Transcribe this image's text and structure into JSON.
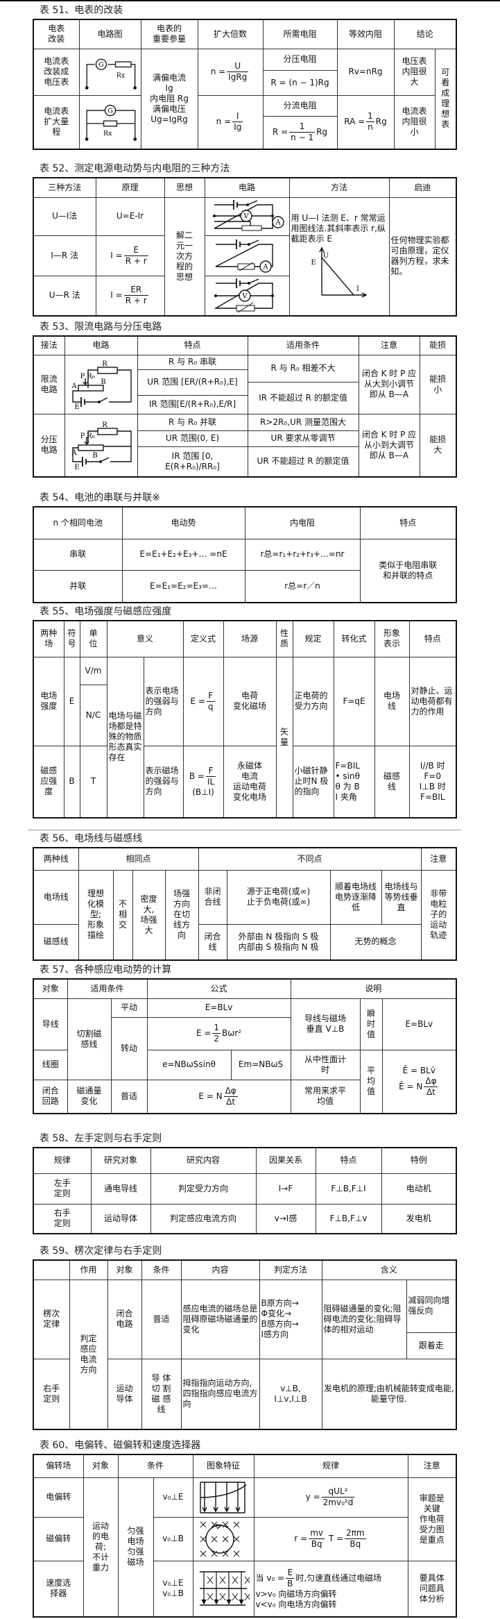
{
  "tables": [
    {
      "id": "51",
      "title": "表 51、电表的改装",
      "rows": [
        [
          {
            "t": "电表\n改装"
          },
          {
            "t": "电路图"
          },
          {
            "t": "电表的\n重要参量"
          },
          {
            "t": "扩大倍数"
          },
          {
            "t": "所需电阻"
          },
          {
            "t": "等效内阻"
          },
          {
            "t": "结论",
            "cs": 2
          }
        ],
        [
          {
            "t": "电流表\n改装成\n电压表",
            "rs": 2
          },
          {
            "svg": "voltmeter-conversion-circuit",
            "labels": [
              "G",
              "Rx"
            ],
            "rs": 2
          },
          {
            "t": "满偏电流\nIg\n内电阻 Rg\n满偏电压\nUg=IgRg",
            "rs": 4
          },
          {
            "m": [
              "n =",
              {
                "n": "U",
                "d": "IgRg"
              }
            ],
            "rs": 2
          },
          {
            "t": "分压电阻"
          },
          {
            "t": "Rv=nRg",
            "rs": 2
          },
          {
            "t": "电压表\n内阻很\n大",
            "rs": 2
          },
          {
            "t": "可\n看\n成\n理\n想\n表",
            "rs": 4
          }
        ],
        [
          {
            "m": [
              "R = (n − 1)Rg"
            ]
          }
        ],
        [
          {
            "t": "电流表\n扩大量\n程",
            "rs": 2
          },
          {
            "svg": "ammeter-conversion-circuit",
            "labels": [
              "G",
              "Rx"
            ],
            "rs": 2
          },
          {
            "m": [
              "n =",
              {
                "n": "I",
                "d": "Ig"
              }
            ],
            "rs": 2
          },
          {
            "t": "分流电阻"
          },
          {
            "m": [
              "RA =",
              {
                "n": "1",
                "d": "n"
              },
              "Rg"
            ],
            "rs": 2
          },
          {
            "t": "电流表\n内阻很\n小",
            "rs": 2
          }
        ],
        [
          {
            "m": [
              "R =",
              {
                "n": "1",
                "d": "n − 1"
              },
              "Rg"
            ]
          }
        ]
      ]
    },
    {
      "id": "52",
      "title": "表 52、测定电源电动势与内电阻的三种方法",
      "rows": [
        [
          {
            "t": "三种方法"
          },
          {
            "t": "原理"
          },
          {
            "t": "思想"
          },
          {
            "t": "电路"
          },
          {
            "t": "方法"
          },
          {
            "t": "启迪"
          }
        ],
        [
          {
            "t": "U—I法"
          },
          {
            "t": "U=E-Ir"
          },
          {
            "t": "解二\n元一\n次方\n程的\n思想",
            "rs": 3
          },
          {
            "svg": "ui-method-circuit",
            "labels": [
              "V",
              "A"
            ]
          },
          {
            "t": "用 U—I 法测 E、r 常常运用图线法.其斜率表示 r,纵截距表示 E",
            "svg": "ui-graph",
            "labels": [
              "E",
              "U",
              "I"
            ],
            "rs": 3
          },
          {
            "t": "任何物理实验都可由原理，定仪器列方程，求未知。",
            "rs": 3
          }
        ],
        [
          {
            "t": "I—R 法"
          },
          {
            "m": [
              "I =",
              {
                "n": "E",
                "d": "R + r"
              }
            ]
          },
          {
            "svg": "ir-method-circuit",
            "labels": [
              "A"
            ]
          }
        ],
        [
          {
            "t": "U—R 法"
          },
          {
            "m": [
              "I =",
              {
                "n": "ER",
                "d": "R + r"
              }
            ]
          },
          {
            "svg": "ur-method-circuit",
            "labels": [
              "V"
            ]
          }
        ]
      ]
    },
    {
      "id": "53",
      "title": "表 53、限流电路与分压电路",
      "rows": [
        [
          {
            "t": "接法"
          },
          {
            "t": "电路"
          },
          {
            "t": "特点"
          },
          {
            "t": "适用条件"
          },
          {
            "t": "注意"
          },
          {
            "t": "能损"
          }
        ],
        [
          {
            "t": "限流\n电路",
            "rs": 4
          },
          {
            "svg": "current-limiting-circuit",
            "labels": [
              "R",
              "P",
              "R₀",
              "A",
              "B",
              "E"
            ],
            "rs": 4
          },
          {
            "t": "R 与 R₀ 串联"
          },
          {
            "t": "R 与 R₀ 相差不大",
            "rs": 2
          },
          {
            "t": "闭合 K 时 P 应从大到小调节即从 B—A",
            "rs": 4
          },
          {
            "t": "能损\n小",
            "rs": 4
          }
        ],
        [
          {
            "t": "UR 范围 [ER/(R+R₀),E]",
            "rs": 2
          }
        ],
        [
          {
            "t": "IR 不能超过 R 的额定值",
            "rs": 2
          }
        ],
        [
          {
            "t": "IR 范围[E/(R+R₀),E/R]"
          }
        ],
        [
          {
            "t": "分压\n电路",
            "rs": 3
          },
          {
            "svg": "voltage-divider-circuit",
            "labels": [
              "R",
              "P",
              "R₀",
              "A",
              "B",
              "E"
            ],
            "rs": 3
          },
          {
            "t": "R 与 R₀ 并联"
          },
          {
            "t": "R>2R₀,UR 测量范围大"
          },
          {
            "t": "闭合 K 时 P 应从小到大调节即从 B—A",
            "rs": 3
          },
          {
            "t": "能损\n大",
            "rs": 3
          }
        ],
        [
          {
            "t": "UR 范围(0, E)"
          },
          {
            "t": "UR 要求从零调节"
          }
        ],
        [
          {
            "t": "IR 范围 [0,\nE(R+R₀)/RR₀]"
          },
          {
            "t": "UR 不能超过 R 的额定值"
          }
        ]
      ]
    },
    {
      "id": "54",
      "title": "表 54、电池的串联与并联※",
      "rows": [
        [
          {
            "t": "n 个相同电池"
          },
          {
            "t": "电动势"
          },
          {
            "t": "内电阻"
          },
          {
            "t": "特点"
          }
        ],
        [
          {
            "t": "串联"
          },
          {
            "t": "E=E₁+E₂+E₃+… =nE"
          },
          {
            "t": "r总=r₁+r₂+r₃+…=nr"
          },
          {
            "t": "类似于电阻串联\n和并联的特点",
            "rs": 2
          }
        ],
        [
          {
            "t": "并联"
          },
          {
            "t": "E=E₁=E₂=E₃=…"
          },
          {
            "t": "r总=r／n"
          }
        ]
      ]
    },
    {
      "id": "55",
      "title": "表 55、电场强度与磁感应强度",
      "rows": [
        [
          {
            "t": "两种\n场"
          },
          {
            "t": "符\n号"
          },
          {
            "t": "单\n位"
          },
          {
            "t": "意义",
            "cs": 2
          },
          {
            "t": "定义式"
          },
          {
            "t": "场源"
          },
          {
            "t": "性\n质"
          },
          {
            "t": "规定"
          },
          {
            "t": "转化式"
          },
          {
            "t": "形象\n表示"
          },
          {
            "t": "特点"
          }
        ],
        [
          {
            "t": "电场\n强度",
            "rs": 2
          },
          {
            "t": "E",
            "rs": 2
          },
          {
            "t": "V/m"
          },
          {
            "t": "电场与磁场都是特殊的物质形态真实存在",
            "rs": 3
          },
          {
            "t": "表示电场的强弱与方向",
            "rs": 2
          },
          {
            "m": [
              "E =",
              {
                "n": "F",
                "d": "q"
              }
            ],
            "rs": 2
          },
          {
            "t": "电荷\n变化磁场",
            "rs": 2
          },
          {
            "t": "矢\n量",
            "rs": 3
          },
          {
            "t": "正电荷的受力方向",
            "rs": 2
          },
          {
            "t": "F=qE",
            "rs": 2
          },
          {
            "t": "电场\n线",
            "rs": 2
          },
          {
            "t": "对静止、运动电荷都有力的作用",
            "rs": 2
          }
        ],
        [
          {
            "t": "N/C"
          }
        ],
        [
          {
            "t": "磁感\n应强\n度"
          },
          {
            "t": "B"
          },
          {
            "t": "T"
          },
          {
            "t": "表示磁场的强弱与方向"
          },
          {
            "m": [
              "B =",
              {
                "n": "F",
                "d": "IL"
              },
              "\n(B⊥I)"
            ]
          },
          {
            "t": "永磁体\n电流\n运动电荷\n变化电场"
          },
          {
            "t": "小磁针静止时N 极的指向"
          },
          {
            "t": "F=BIL\n• sinθ\nθ 为 B\nI 夹角"
          },
          {
            "t": "磁感\n线"
          },
          {
            "t": "I//B 时\nF=0\nI⊥B 时\nF=BIL"
          }
        ]
      ]
    },
    {
      "id": "56",
      "title": "表 56、电场线与磁感线",
      "rows": [
        [
          {
            "t": "两种线"
          },
          {
            "t": "相同点",
            "cs": 4
          },
          {
            "t": "不同点",
            "cs": 4
          },
          {
            "t": "注意"
          }
        ],
        [
          {
            "t": "电场线"
          },
          {
            "t": "理想\n化模\n型;\n形象\n描绘",
            "rs": 2
          },
          {
            "t": "不\n相\n交",
            "rs": 2
          },
          {
            "t": "密度\n大,\n场强\n大",
            "rs": 2
          },
          {
            "t": "场强\n方向\n在切\n线方\n向",
            "rs": 2
          },
          {
            "t": "非闭\n合线"
          },
          {
            "t": "源于正电荷(或∞)\n止于负电荷(或∞)"
          },
          {
            "t": "顺着电场线电势逐渐降低"
          },
          {
            "t": "电场线与等势线垂直"
          },
          {
            "t": "非带\n电粒\n子的\n运动\n轨迹",
            "rs": 2
          }
        ],
        [
          {
            "t": "磁感线"
          },
          {
            "t": "闭合\n线"
          },
          {
            "t": "外部由 N 极指向 S 极\n内部由 S 极指向 N 极"
          },
          {
            "t": "无势的概念",
            "cs": 2
          }
        ]
      ]
    },
    {
      "id": "57",
      "title": "表 57、各种感应电动势的计算",
      "rows": [
        [
          {
            "t": "对象"
          },
          {
            "t": "适用条件",
            "cs": 2
          },
          {
            "t": "公式",
            "cs": 2
          },
          {
            "t": "说明",
            "cs": 3
          }
        ],
        [
          {
            "t": "导线",
            "rs": 2
          },
          {
            "t": "切割磁\n感线",
            "rs": 3
          },
          {
            "t": "平动"
          },
          {
            "t": "E=BLv",
            "cs": 2
          },
          {
            "t": "导线与磁场\n垂直 V⊥B",
            "rs": 2
          },
          {
            "t": "瞬\n时\n值",
            "rs": 2
          },
          {
            "t": "E=BLv",
            "rs": 2
          }
        ],
        [
          {
            "t": "转动",
            "rs": 2
          },
          {
            "m": [
              "E =",
              {
                "n": "1",
                "d": "2"
              },
              "Bωr²"
            ],
            "cs": 2
          }
        ],
        [
          {
            "t": "线圈"
          },
          {
            "t": "e=NBωSsinθ"
          },
          {
            "t": "Em=NBωS"
          },
          {
            "t": "从中性面计\n时"
          },
          {
            "t": "平\n均\n值",
            "rs": 2
          },
          {
            "m": [
              "Ē = BLv̄\n",
              "Ē = N",
              {
                "n": "Δφ",
                "d": "Δt"
              }
            ],
            "rs": 2
          }
        ],
        [
          {
            "t": "闭合\n回路"
          },
          {
            "t": "磁通量\n变化"
          },
          {
            "t": "普适"
          },
          {
            "m": [
              "E = N",
              {
                "n": "Δφ",
                "d": "Δt"
              }
            ],
            "cs": 2
          },
          {
            "t": "常用来求平\n均值"
          }
        ]
      ]
    },
    {
      "id": "58",
      "title": "表 58、左手定则与右手定则",
      "rows": [
        [
          {
            "t": "规律"
          },
          {
            "t": "研究对象"
          },
          {
            "t": "研究内容"
          },
          {
            "t": "因果关系"
          },
          {
            "t": "特点"
          },
          {
            "t": "特例"
          }
        ],
        [
          {
            "t": "左手\n定则"
          },
          {
            "t": "通电导线"
          },
          {
            "t": "判定受力方向"
          },
          {
            "t": "I→F"
          },
          {
            "t": "F⊥B,F⊥I"
          },
          {
            "t": "电动机"
          }
        ],
        [
          {
            "t": "右手\n定则"
          },
          {
            "t": "运动导体"
          },
          {
            "t": "判定感应电流方向"
          },
          {
            "t": "v→I感"
          },
          {
            "t": "F⊥B,F⊥v"
          },
          {
            "t": "发电机"
          }
        ]
      ]
    },
    {
      "id": "59",
      "title": "表 59、楞次定律与右手定则",
      "rows": [
        [
          {
            "t": ""
          },
          {
            "t": "作用"
          },
          {
            "t": "对象"
          },
          {
            "t": "条件"
          },
          {
            "t": "内容"
          },
          {
            "t": "判定方法"
          },
          {
            "t": "含义",
            "cs": 2
          }
        ],
        [
          {
            "t": "楞次\n定律",
            "rs": 2
          },
          {
            "t": "判定\n感应\n电流\n方向",
            "rs": 3
          },
          {
            "t": "闭合\n电路",
            "rs": 2
          },
          {
            "t": "普适",
            "rs": 2
          },
          {
            "t": "感应电流的磁场总是阻碍原磁场磁通量的变化",
            "rs": 2
          },
          {
            "t": "B原方向→\nΦ变化→\nB感方向→\nI感方向",
            "rs": 2
          },
          {
            "t": "阻碍磁通量的变化;阻碍电流的变化;阻碍导体的相对运动",
            "rs": 2
          },
          {
            "t": "减弱同向增强反向"
          }
        ],
        [
          {
            "t": "跟着走"
          }
        ],
        [
          {
            "t": "右手\n定则"
          },
          {
            "t": "运动\n导体"
          },
          {
            "t": "导 体\n切 割\n磁 感\n线"
          },
          {
            "t": "拇指指向运动方向,四指指向感应电流方向"
          },
          {
            "t": "v⊥B,\nI⊥v,I⊥B"
          },
          {
            "t": "发电机的原理;由机械能转变成电能,能量守恒.",
            "cs": 2
          }
        ]
      ]
    },
    {
      "id": "60",
      "title": "表 60、电偏转、磁偏转和速度选择器",
      "rows": [
        [
          {
            "t": "偏转场"
          },
          {
            "t": "对象"
          },
          {
            "t": "条件",
            "cs": 2
          },
          {
            "t": "图象特征"
          },
          {
            "t": "规律"
          },
          {
            "t": "注意"
          }
        ],
        [
          {
            "t": "电偏转"
          },
          {
            "t": "运动\n的电\n荷;\n不计\n重力",
            "rs": 3
          },
          {
            "t": "匀强\n电场\n匀强\n磁场",
            "rs": 3
          },
          {
            "t": "v₀⊥E"
          },
          {
            "svg": "electric-deflection-figure"
          },
          {
            "m": [
              "y =",
              {
                "n": "qUL²",
                "d": "2mv₀²d"
              }
            ]
          },
          {
            "t": "审题是\n关键\n作电荷\n受力图\n是重点",
            "rs": 2
          }
        ],
        [
          {
            "t": "磁偏转"
          },
          {
            "t": "v₀⊥B"
          },
          {
            "svg": "magnetic-deflection-figure"
          },
          {
            "m": [
              "r =",
              {
                "n": "mv",
                "d": "Bq"
              },
              "   T =",
              {
                "n": "2πm",
                "d": "Bq"
              }
            ]
          }
        ],
        [
          {
            "t": "速度选\n择器"
          },
          {
            "t": "v₀⊥E\nv₀⊥B"
          },
          {
            "svg": "velocity-selector-figure"
          },
          {
            "m": [
              "当 v₀ =",
              {
                "n": "E",
                "d": "B"
              },
              "时,匀速直线通过电磁场\nv>v₀ 向磁场方向偏转\nv<v₀ 向电场方向偏转"
            ]
          },
          {
            "t": "要具体\n问题具\n体分析"
          }
        ]
      ]
    }
  ]
}
